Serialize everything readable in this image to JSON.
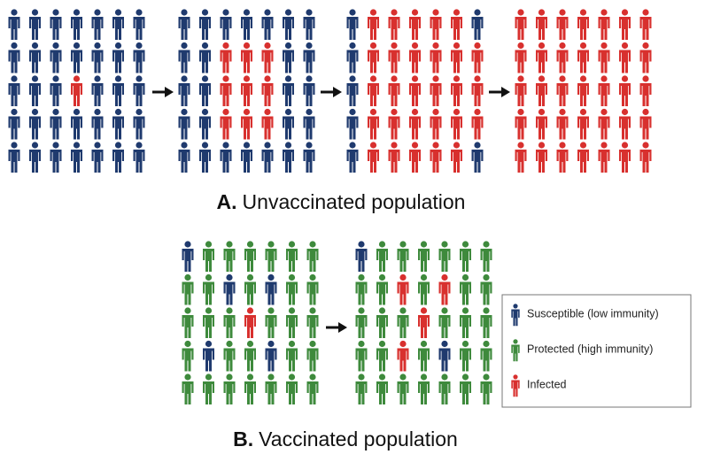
{
  "panel_a": {
    "letter": "A.",
    "caption": "Unvaccinated population"
  },
  "panel_b": {
    "letter": "B.",
    "caption": "Vaccinated population"
  },
  "legend": {
    "items": [
      {
        "label": "Susceptible (low immunity)"
      },
      {
        "label": "Protected (high immunity)"
      },
      {
        "label": "Infected"
      }
    ]
  }
}
